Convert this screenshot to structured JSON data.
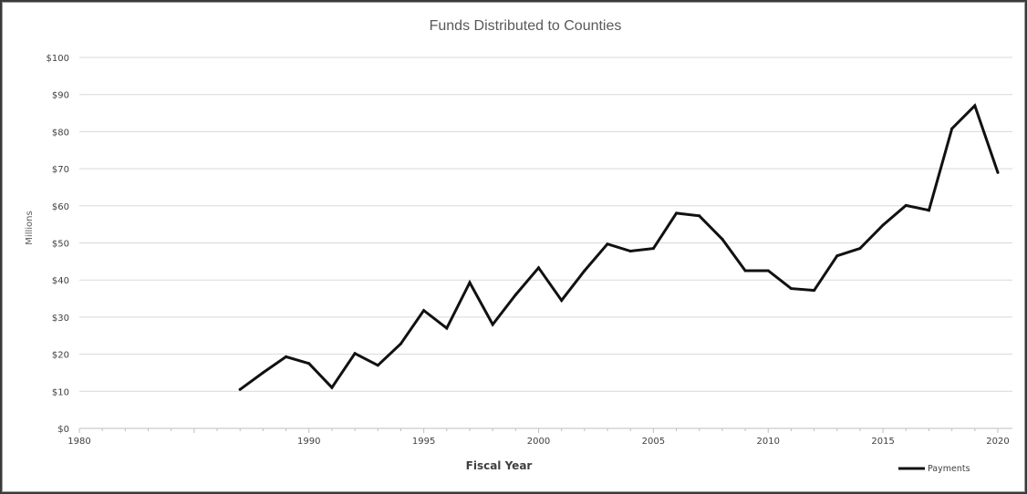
{
  "chart_data": {
    "type": "line",
    "title": "Funds Distributed to Counties",
    "xlabel": "Fiscal Year",
    "ylabel": "Millions",
    "xlim": [
      1980,
      2020
    ],
    "ylim": [
      0,
      100
    ],
    "x_ticks": [
      "1980",
      "1990",
      "1995",
      "2000",
      "2005",
      "2010",
      "2015",
      "2020"
    ],
    "y_ticks": [
      "$0",
      "$10",
      "$20",
      "$30",
      "$40",
      "$50",
      "$60",
      "$70",
      "$80",
      "$90",
      "$100"
    ],
    "grid": "horizontal",
    "legend_position": "bottom-right",
    "series": [
      {
        "name": "Payments",
        "color": "#111111",
        "x": [
          1987,
          1988,
          1989,
          1990,
          1991,
          1992,
          1993,
          1994,
          1995,
          1996,
          1997,
          1998,
          1999,
          2000,
          2001,
          2002,
          2003,
          2004,
          2005,
          2006,
          2007,
          2008,
          2009,
          2010,
          2011,
          2012,
          2013,
          2014,
          2015,
          2016,
          2017,
          2018,
          2019,
          2020
        ],
        "values": [
          10.5,
          15,
          19.3,
          17.5,
          11,
          20.2,
          17,
          22.8,
          31.8,
          27,
          39.3,
          28,
          36,
          43.3,
          34.5,
          42.5,
          49.7,
          47.8,
          48.5,
          58,
          57.3,
          51,
          42.5,
          42.5,
          37.7,
          37.2,
          46.5,
          48.5,
          54.8,
          60.1,
          58.8,
          80.8,
          87,
          69
        ]
      }
    ]
  }
}
